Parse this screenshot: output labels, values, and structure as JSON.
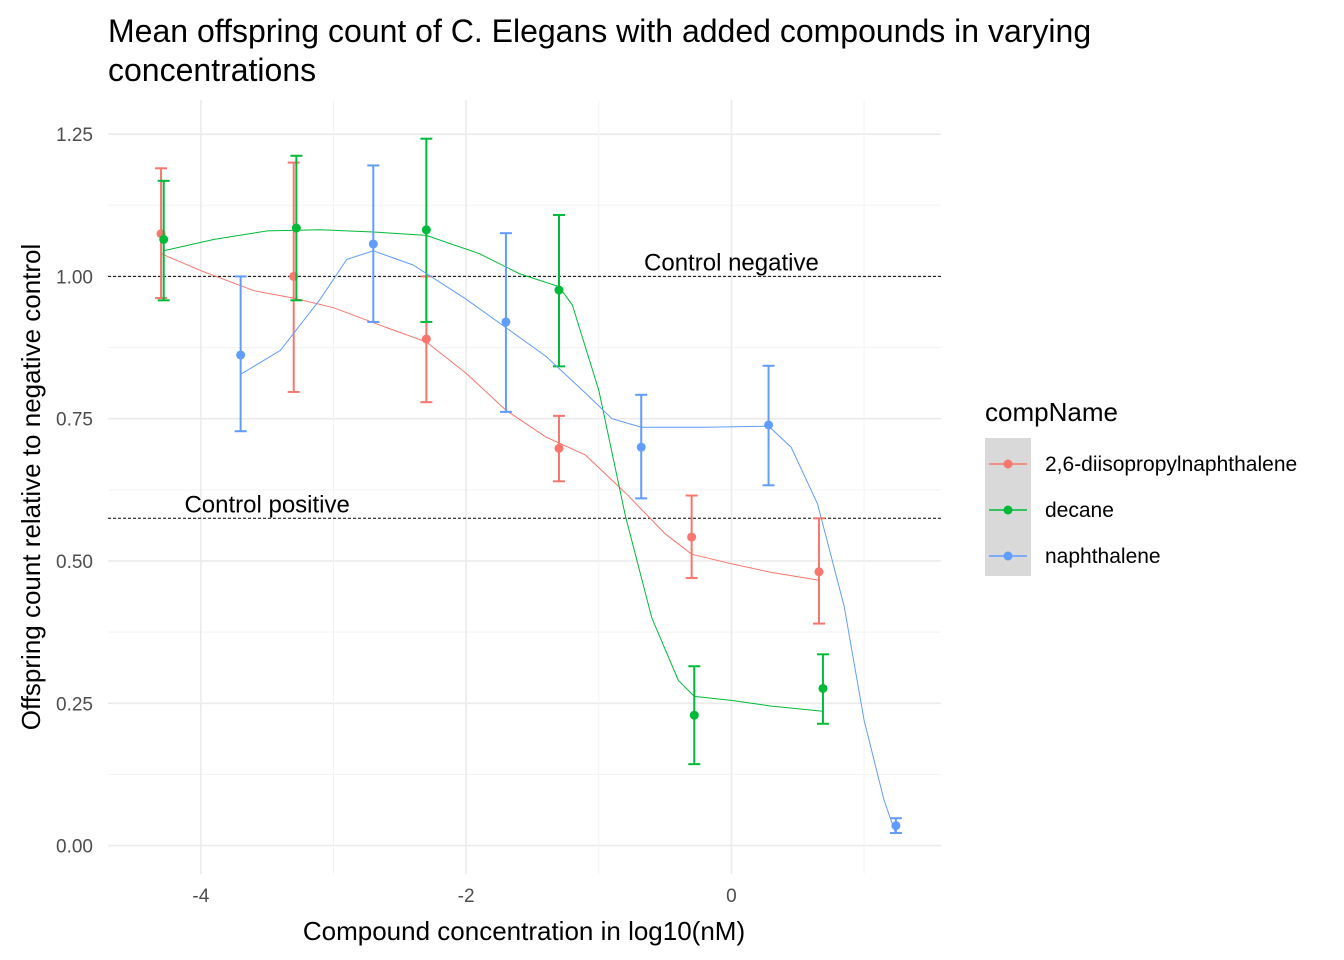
{
  "chart_data": {
    "type": "scatter",
    "title": "Mean offspring count of C. Elegans with added compounds in varying concentrations",
    "xlabel": "Compound concentration in log10(nM)",
    "ylabel": "Offspring count relative to negative control",
    "xlim": [
      -4.7,
      1.58
    ],
    "ylim": [
      -0.05,
      1.31
    ],
    "x_ticks": [
      -4,
      -2,
      0
    ],
    "x_tick_labels": [
      "-4",
      "-2",
      "0"
    ],
    "y_ticks": [
      0,
      0.25,
      0.5,
      0.75,
      1.0,
      1.25
    ],
    "y_tick_labels": [
      "0.00",
      "0.25",
      "0.50",
      "0.75",
      "1.00",
      "1.25"
    ],
    "grid": true,
    "legend": {
      "title": "compName",
      "position": "right"
    },
    "reference_lines": [
      {
        "label": "Control negative",
        "y": 1.0,
        "label_x": 0.0
      },
      {
        "label": "Control positive",
        "y": 0.575,
        "label_x": -3.5
      }
    ],
    "series": [
      {
        "name": "2,6-diisopropylnaphthalene",
        "color": "#F8766D",
        "x": [
          -4.3,
          -3.3,
          -2.3,
          -1.3,
          -0.3,
          0.66
        ],
        "y": [
          1.075,
          1.0,
          0.89,
          0.698,
          0.542,
          0.481
        ],
        "ymin": [
          0.962,
          0.797,
          0.779,
          0.64,
          0.47,
          0.39
        ],
        "ymax": [
          1.19,
          1.2,
          1.0,
          0.755,
          0.615,
          0.575
        ],
        "smooth": [
          [
            -4.3,
            1.04
          ],
          [
            -4.0,
            1.01
          ],
          [
            -3.6,
            0.975
          ],
          [
            -3.3,
            0.962
          ],
          [
            -3.0,
            0.945
          ],
          [
            -2.6,
            0.91
          ],
          [
            -2.3,
            0.885
          ],
          [
            -2.0,
            0.83
          ],
          [
            -1.7,
            0.765
          ],
          [
            -1.4,
            0.718
          ],
          [
            -1.1,
            0.686
          ],
          [
            -0.8,
            0.62
          ],
          [
            -0.5,
            0.548
          ],
          [
            -0.3,
            0.512
          ],
          [
            0.0,
            0.495
          ],
          [
            0.3,
            0.48
          ],
          [
            0.66,
            0.466
          ]
        ]
      },
      {
        "name": "decane",
        "color": "#00BA38",
        "x": [
          -4.28,
          -3.28,
          -2.3,
          -1.3,
          -0.28,
          0.69
        ],
        "y": [
          1.065,
          1.085,
          1.082,
          0.976,
          0.229,
          0.276
        ],
        "ymin": [
          0.958,
          0.958,
          0.92,
          0.842,
          0.143,
          0.214
        ],
        "ymax": [
          1.168,
          1.212,
          1.242,
          1.108,
          0.315,
          0.336
        ],
        "smooth": [
          [
            -4.28,
            1.045
          ],
          [
            -3.9,
            1.065
          ],
          [
            -3.5,
            1.08
          ],
          [
            -3.1,
            1.082
          ],
          [
            -2.7,
            1.078
          ],
          [
            -2.3,
            1.072
          ],
          [
            -1.9,
            1.04
          ],
          [
            -1.6,
            1.005
          ],
          [
            -1.3,
            0.982
          ],
          [
            -1.2,
            0.95
          ],
          [
            -1.0,
            0.8
          ],
          [
            -0.8,
            0.58
          ],
          [
            -0.6,
            0.4
          ],
          [
            -0.4,
            0.29
          ],
          [
            -0.28,
            0.262
          ],
          [
            0.0,
            0.255
          ],
          [
            0.3,
            0.245
          ],
          [
            0.69,
            0.236
          ]
        ]
      },
      {
        "name": "naphthalene",
        "color": "#619CFF",
        "x": [
          -3.7,
          -2.7,
          -1.7,
          -0.68,
          0.28,
          1.24
        ],
        "y": [
          0.862,
          1.057,
          0.92,
          0.7,
          0.739,
          0.035
        ],
        "ymin": [
          0.728,
          0.92,
          0.762,
          0.61,
          0.633,
          0.022
        ],
        "ymax": [
          1.0,
          1.195,
          1.076,
          0.792,
          0.843,
          0.048
        ],
        "smooth": [
          [
            -3.7,
            0.828
          ],
          [
            -3.4,
            0.87
          ],
          [
            -3.1,
            0.96
          ],
          [
            -2.9,
            1.03
          ],
          [
            -2.7,
            1.045
          ],
          [
            -2.4,
            1.02
          ],
          [
            -2.0,
            0.96
          ],
          [
            -1.7,
            0.91
          ],
          [
            -1.4,
            0.86
          ],
          [
            -1.1,
            0.795
          ],
          [
            -0.9,
            0.75
          ],
          [
            -0.68,
            0.735
          ],
          [
            -0.2,
            0.735
          ],
          [
            0.28,
            0.737
          ],
          [
            0.45,
            0.7
          ],
          [
            0.65,
            0.6
          ],
          [
            0.85,
            0.42
          ],
          [
            1.0,
            0.22
          ],
          [
            1.15,
            0.08
          ],
          [
            1.24,
            0.02
          ]
        ]
      }
    ]
  }
}
